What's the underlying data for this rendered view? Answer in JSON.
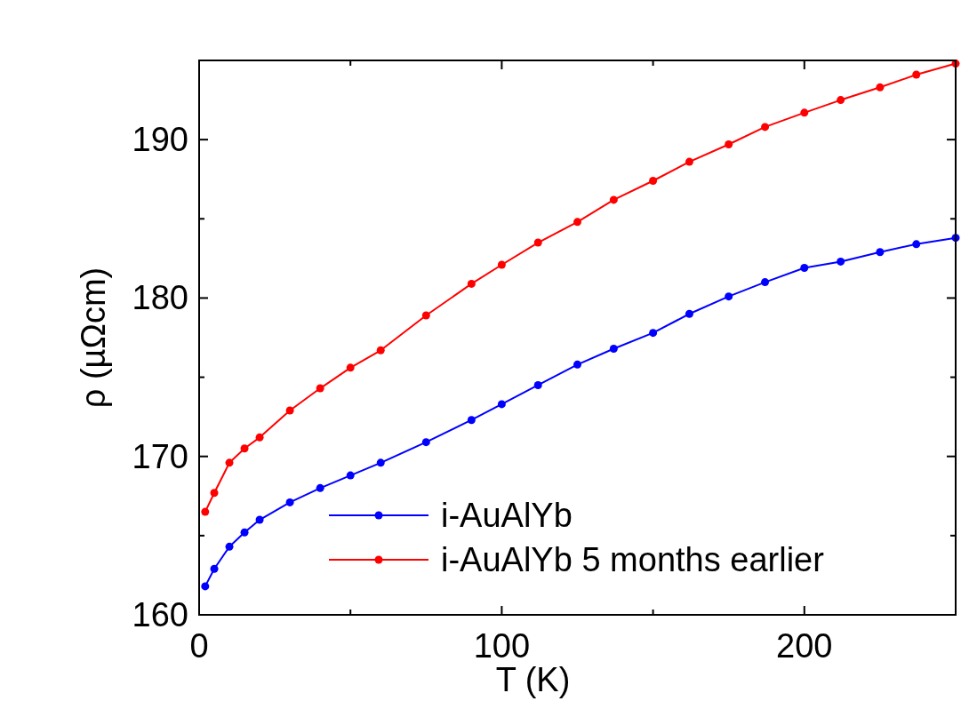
{
  "chart_data": {
    "type": "line",
    "xlabel": "T (K)",
    "ylabel": "ρ (µΩcm)",
    "xlim": [
      0,
      250
    ],
    "ylim": [
      160,
      195
    ],
    "xticks": [
      0,
      {
        "value": 50,
        "label": null
      },
      100,
      {
        "value": 150,
        "label": null
      },
      200,
      {
        "value": 250,
        "label": null
      }
    ],
    "yticks": [
      160,
      {
        "value": 165,
        "label": null
      },
      170,
      {
        "value": 175,
        "label": null
      },
      180,
      {
        "value": 185,
        "label": null
      },
      190,
      {
        "value": 195,
        "label": null
      }
    ],
    "marker": "circle",
    "line_style": "solid",
    "legend": "bottom right",
    "grid": false,
    "series": [
      {
        "name": "i-AuAlYb",
        "color": "#0000ff",
        "x": [
          2,
          5,
          10,
          15,
          20,
          30,
          40,
          50,
          60,
          75,
          90,
          100,
          112,
          125,
          137,
          150,
          162,
          175,
          187,
          200,
          212,
          225,
          237,
          250
        ],
        "values": [
          161.8,
          162.9,
          164.3,
          165.2,
          166.0,
          167.1,
          168.0,
          168.8,
          169.6,
          170.9,
          172.3,
          173.3,
          174.5,
          175.8,
          176.8,
          177.8,
          179.0,
          180.1,
          181.0,
          181.9,
          182.3,
          182.9,
          183.4,
          183.8
        ]
      },
      {
        "name": "i-AuAlYb 5 months earlier",
        "color": "#ff0000",
        "x": [
          2,
          5,
          10,
          15,
          20,
          30,
          40,
          50,
          60,
          75,
          90,
          100,
          112,
          125,
          137,
          150,
          162,
          175,
          187,
          200,
          212,
          225,
          237,
          250
        ],
        "values": [
          166.5,
          167.7,
          169.6,
          170.5,
          171.2,
          172.9,
          174.3,
          175.6,
          176.7,
          178.9,
          180.9,
          182.1,
          183.5,
          184.8,
          186.2,
          187.4,
          188.6,
          189.7,
          190.8,
          191.7,
          192.5,
          193.3,
          194.1,
          194.8
        ]
      }
    ]
  }
}
